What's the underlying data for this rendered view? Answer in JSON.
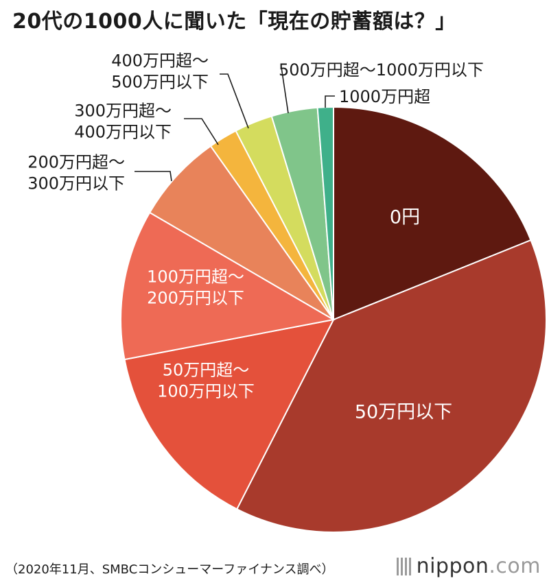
{
  "title": "20代の1000人に聞いた「現在の貯蓄額は？」",
  "source": "（2020年11月、SMBCコンシューマーファイナンス調べ）",
  "logo": {
    "name": "nippon",
    "suffix": ".com"
  },
  "chart_data": {
    "type": "pie",
    "title": "20代の1000人に聞いた「現在の貯蓄額は？」",
    "start": "12 o'clock",
    "direction": "clockwise",
    "slices": [
      {
        "label": "0円",
        "value": 18.9,
        "color": "#5e1910",
        "label_lines": [
          "0円"
        ],
        "label_inside": true
      },
      {
        "label": "50万円以下",
        "value": 38.6,
        "color": "#a83a2c",
        "label_lines": [
          "50万円以下"
        ],
        "label_inside": true
      },
      {
        "label": "50万円超〜100万円以下",
        "value": 14.5,
        "color": "#e4513b",
        "label_lines": [
          "50万円超〜",
          "100万円以下"
        ],
        "label_inside": true
      },
      {
        "label": "100万円超〜200万円以下",
        "value": 11.4,
        "color": "#ee6a55",
        "label_lines": [
          "100万円超〜",
          "200万円以下"
        ],
        "label_inside": true
      },
      {
        "label": "200万円超〜300万円以下",
        "value": 6.8,
        "color": "#e8835a",
        "label_lines": [
          "200万円超〜",
          "300万円以下"
        ],
        "label_inside": false
      },
      {
        "label": "300万円超〜400万円以下",
        "value": 2.2,
        "color": "#f4b53d",
        "label_lines": [
          "300万円超〜",
          "400万円以下"
        ],
        "label_inside": false
      },
      {
        "label": "400万円超〜500万円以下",
        "value": 2.9,
        "color": "#d4dc5e",
        "label_lines": [
          "400万円超〜",
          "500万円以下"
        ],
        "label_inside": false
      },
      {
        "label": "500万円超〜1000万円以下",
        "value": 3.5,
        "color": "#80c58a",
        "label_lines": [
          "500万円超〜1000万円以下"
        ],
        "label_inside": false
      },
      {
        "label": "1000万円超",
        "value": 1.2,
        "color": "#3fb08a",
        "label_lines": [
          "1000万円超"
        ],
        "label_inside": false
      }
    ]
  }
}
